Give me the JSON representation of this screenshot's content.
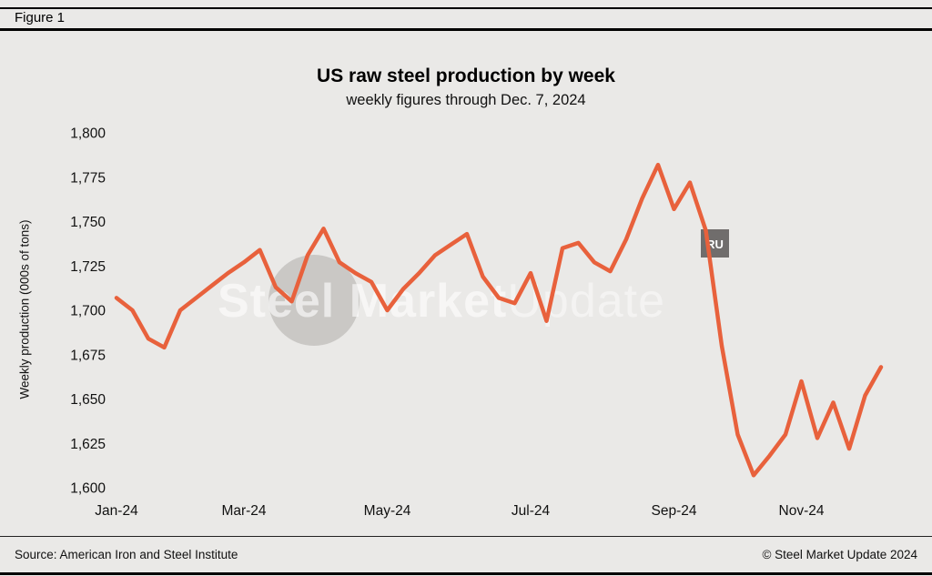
{
  "figure": {
    "label": "Figure 1"
  },
  "chart_data": {
    "type": "line",
    "title": "US raw steel production by week",
    "subtitle": "weekly figures through Dec. 7, 2024",
    "xlabel": "",
    "ylabel": "Weekly production (000s of tons)",
    "ylim": [
      1600,
      1800
    ],
    "yticks": [
      1600,
      1625,
      1650,
      1675,
      1700,
      1725,
      1750,
      1775,
      1800
    ],
    "grid": false,
    "legend": "none",
    "line_color": "#e8613c",
    "x_total_weeks": 48,
    "x_ticks": [
      {
        "label": "Jan-24",
        "week": 0
      },
      {
        "label": "Mar-24",
        "week": 8
      },
      {
        "label": "May-24",
        "week": 17
      },
      {
        "label": "Jul-24",
        "week": 26
      },
      {
        "label": "Sep-24",
        "week": 35
      },
      {
        "label": "Nov-24",
        "week": 43
      }
    ],
    "x_unit": "week ending, Jan-24 through Dec. 7, 2024",
    "values": [
      1707,
      1700,
      1684,
      1679,
      1700,
      1707,
      1714,
      1721,
      1727,
      1734,
      1713,
      1705,
      1731,
      1746,
      1727,
      1721,
      1716,
      1700,
      1712,
      1721,
      1731,
      1737,
      1743,
      1719,
      1707,
      1704,
      1721,
      1694,
      1735,
      1738,
      1727,
      1722,
      1740,
      1763,
      1782,
      1757,
      1772,
      1745,
      1680,
      1630,
      1607,
      1618,
      1630,
      1660,
      1628,
      1648,
      1622,
      1652,
      1668
    ]
  },
  "watermark": {
    "brand_bold": "Steel Market",
    "brand_light": "Update",
    "badge": "RU"
  },
  "footer": {
    "source": "Source: American Iron and Steel Institute",
    "copyright": "© Steel Market Update 2024"
  },
  "colors": {
    "background": "#eae9e7",
    "line": "#e8613c",
    "rule": "#000000",
    "text": "#111111"
  }
}
